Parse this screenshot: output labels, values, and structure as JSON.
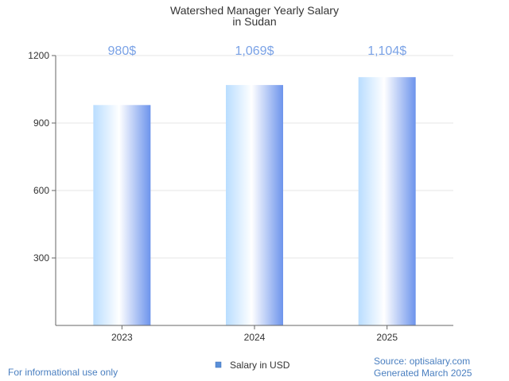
{
  "chart_data": {
    "type": "bar",
    "title": "Watershed Manager Yearly Salary",
    "subtitle": "in Sudan",
    "categories": [
      "2023",
      "2024",
      "2025"
    ],
    "series": [
      {
        "name": "Salary in USD",
        "values": [
          980,
          1069,
          1104
        ]
      }
    ],
    "data_labels": [
      "980$",
      "1,069$",
      "1,104$"
    ],
    "y_ticks": [
      "300",
      "600",
      "900",
      "1200"
    ],
    "ylim": [
      0,
      1200
    ],
    "grid": true,
    "legend_position": "bottom-center"
  },
  "colors": {
    "bar_light": "#ffffff",
    "bar_mid": "#aed6ff",
    "bar_dark": "#6d94ec",
    "data_label": "#7aa2e6",
    "footer_text": "#4a7fc0",
    "grid": "#e6e6e6",
    "axis": "#666666",
    "legend_swatch": "#5a8fd8"
  },
  "footer": {
    "disclaimer": "For informational use only",
    "source": "Source: optisalary.com",
    "generated": "Generated March 2025"
  }
}
